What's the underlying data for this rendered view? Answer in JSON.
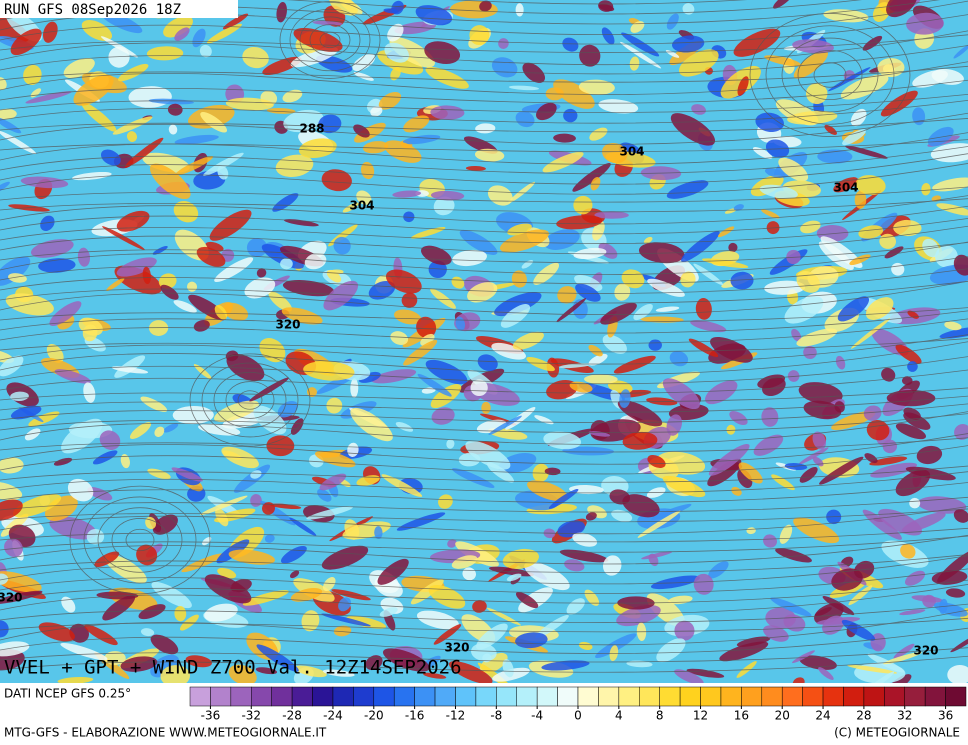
{
  "header": {
    "run": "RUN GFS 08Sep2026 18Z"
  },
  "contour_labels": [
    "288",
    "304",
    "304",
    "304",
    "320",
    "320",
    "320",
    "320"
  ],
  "map_title": "VVEL + GPT + WIND Z700 Val. 12Z14SEP2026",
  "source": "DATI NCEP GFS 0.25°",
  "colorbar": {
    "range": [
      -38,
      38
    ],
    "ticks": [
      -36,
      -32,
      -28,
      -24,
      -20,
      -16,
      -12,
      -8,
      -4,
      0,
      4,
      8,
      12,
      16,
      20,
      24,
      28,
      32,
      36
    ],
    "colors": [
      "#c8a0dc",
      "#b282cc",
      "#9c64bc",
      "#8648ac",
      "#70309c",
      "#4a1c96",
      "#2a1496",
      "#1e28b4",
      "#1e3ccf",
      "#1e55e6",
      "#2873f0",
      "#3c91f5",
      "#50aaf8",
      "#5fc3fa",
      "#78d7fa",
      "#96e6fa",
      "#b4f0fa",
      "#d2f8fa",
      "#f0fcfa",
      "#fffcd2",
      "#fff5aa",
      "#fff082",
      "#ffe65a",
      "#ffdc32",
      "#ffd21e",
      "#ffc81e",
      "#ffb41e",
      "#ffa01e",
      "#ff8c1e",
      "#ff6e1e",
      "#f55014",
      "#e6320f",
      "#d21e0f",
      "#be1414",
      "#aa1428",
      "#961e3c",
      "#82143c",
      "#6e0a32"
    ]
  },
  "footer": {
    "left": "MTG-GFS - ELABORAZIONE WWW.METEOGIORNALE.IT",
    "right": "(C) METEOGIORNALE"
  }
}
